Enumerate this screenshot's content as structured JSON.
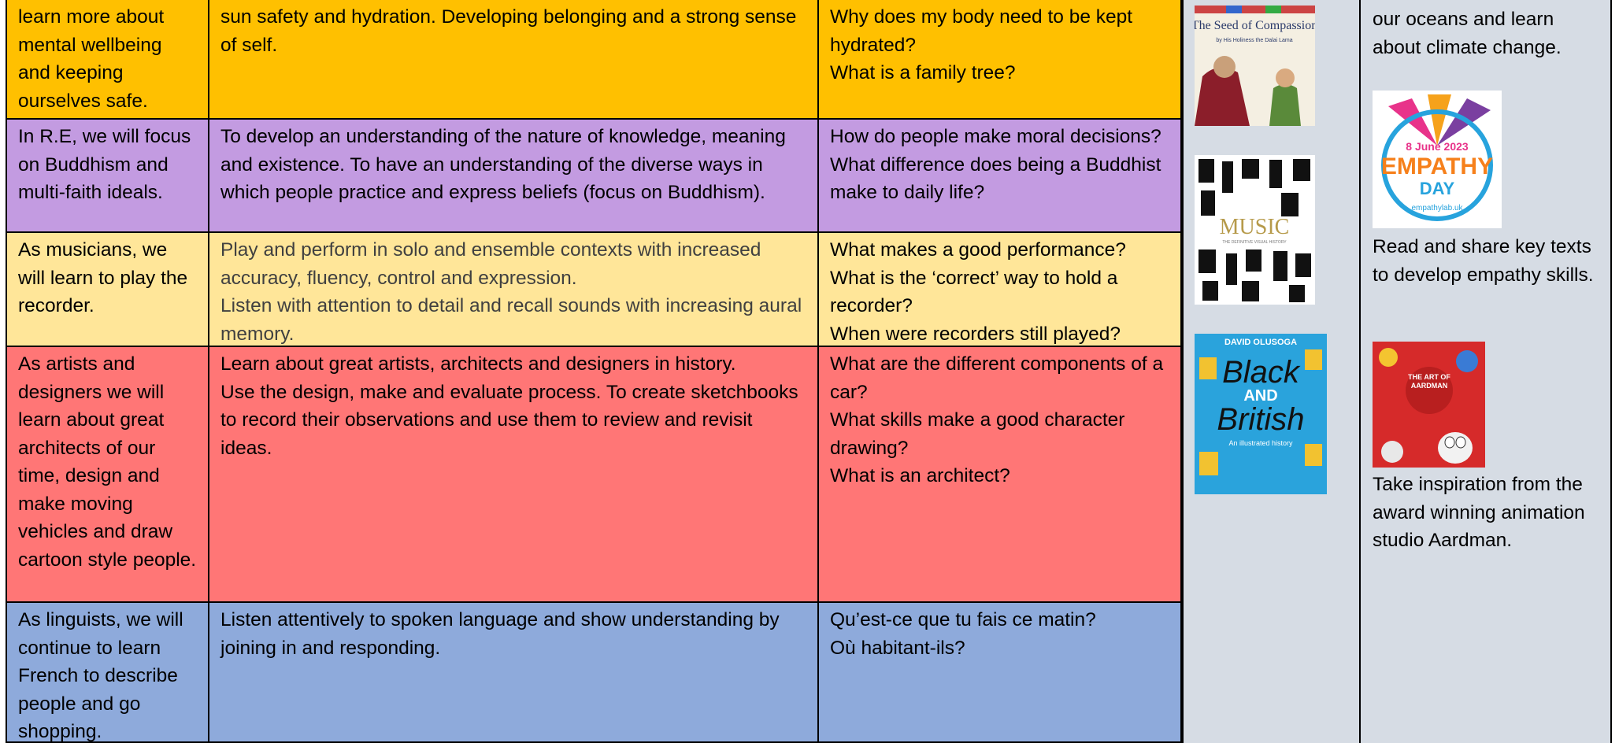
{
  "table": {
    "rows": [
      {
        "color": "#ffc000",
        "intro": "learn more about mental wellbeing and keeping ourselves safe.",
        "aims": [
          "sun safety and hydration. Developing belonging and a strong sense of self."
        ],
        "questions": [
          "Why does my body need to be kept hydrated?",
          "What is a family tree?"
        ]
      },
      {
        "color": "#c39be1",
        "intro": "In R.E, we will focus on Buddhism and multi-faith ideals.",
        "aims": [
          "To develop an understanding of the nature of knowledge, meaning and existence. To have an understanding of the diverse ways in which people practice and express beliefs (focus on Buddhism)."
        ],
        "questions": [
          "How do people make moral decisions?",
          "What difference does being a Buddhist make to daily life?"
        ]
      },
      {
        "color": "#ffe699",
        "aims_color": "#404040",
        "intro": "As musicians, we will learn to play the recorder.",
        "aims": [
          "Play and perform in solo and ensemble contexts with increased accuracy, fluency, control and expression.",
          "Listen with attention to detail and recall sounds with increasing aural memory."
        ],
        "questions": [
          "What makes a good performance?",
          "What is the ‘correct’ way to hold a recorder?",
          "When were recorders still played?"
        ]
      },
      {
        "color": "#ff7676",
        "intro": "As artists and designers we will learn about great architects of our time, design and make moving vehicles and draw cartoon style people.",
        "aims": [
          "Learn about great artists, architects and designers in history.",
          "Use the design, make and evaluate process. To create sketchbooks to record their observations and use them to review and revisit ideas."
        ],
        "questions": [
          "What are the different components of a car?",
          "What skills make a good character drawing?",
          "What is an architect?"
        ]
      },
      {
        "color": "#8eaadb",
        "intro": "As linguists, we will continue to learn French to describe people and go shopping.",
        "aims": [
          "Listen attentively to spoken language and show understanding by joining in and responding."
        ],
        "questions": [
          "Qu’est-ce que tu fais ce matin?",
          "Où habitant-ils?"
        ]
      }
    ]
  },
  "books": [
    {
      "title": "The Seed of Compassion",
      "author": "by His Holiness the Dalai Lama"
    },
    {
      "title": "MUSIC",
      "subtitle": "THE DEFINITIVE VISUAL HISTORY"
    },
    {
      "author": "DAVID OLUSOGA",
      "title_lines": [
        "Black",
        "AND",
        "British"
      ],
      "subtitle": "An illustrated history"
    }
  ],
  "side": {
    "intro": "our oceans and learn about climate change.",
    "empathy": {
      "date": "8 June 2023",
      "title": "EMPATHY",
      "subtitle": "DAY",
      "url": "empathylab.uk",
      "text": "Read and share key texts to develop empathy skills."
    },
    "aardman": {
      "badge": "THE ART OF AARDMAN",
      "text": "Take inspiration from the award winning animation studio Aardman."
    }
  }
}
